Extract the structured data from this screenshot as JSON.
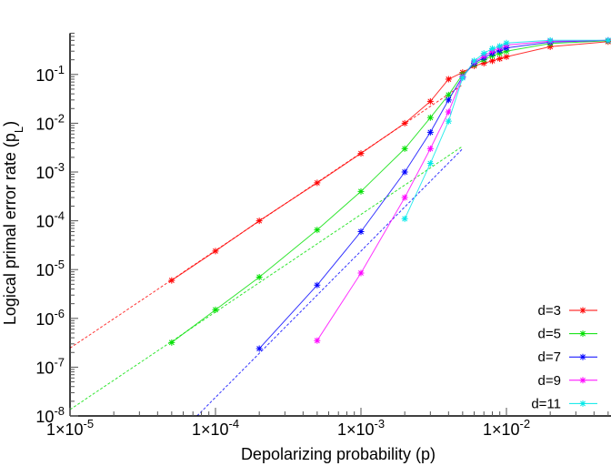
{
  "chart_data": {
    "type": "line",
    "xlabel": "Depolarizing probability (p)",
    "ylabel": "Logical primal error rate (p_L)",
    "xscale": "log",
    "yscale": "log",
    "xlim": [
      1e-05,
      0.05
    ],
    "ylim": [
      1e-08,
      0.7
    ],
    "grid": false,
    "legend_placement": "bottom-right",
    "x_tick_labels": [
      {
        "value": 1e-05,
        "mant": "1",
        "exp": "-5"
      },
      {
        "value": 0.0001,
        "mant": "1",
        "exp": "-4"
      },
      {
        "value": 0.001,
        "mant": "1",
        "exp": "-3"
      },
      {
        "value": 0.01,
        "mant": "1",
        "exp": "-2"
      }
    ],
    "y_tick_labels": [
      {
        "value": 1e-08,
        "exp": "-8"
      },
      {
        "value": 1e-07,
        "exp": "-7"
      },
      {
        "value": 1e-06,
        "exp": "-6"
      },
      {
        "value": 1e-05,
        "exp": "-5"
      },
      {
        "value": 0.0001,
        "exp": "-4"
      },
      {
        "value": 0.001,
        "exp": "-3"
      },
      {
        "value": 0.01,
        "exp": "-2"
      },
      {
        "value": 0.1,
        "exp": "-1"
      }
    ],
    "series": [
      {
        "name": "d=3",
        "color": "#ff0000",
        "x": [
          5e-05,
          0.0001,
          0.0002,
          0.0005,
          0.001,
          0.002,
          0.003,
          0.004,
          0.005,
          0.006,
          0.007,
          0.008,
          0.009,
          0.01,
          0.02,
          0.05
        ],
        "y": [
          6e-06,
          2.4e-05,
          0.0001,
          0.0006,
          0.0024,
          0.01,
          0.028,
          0.08,
          0.11,
          0.15,
          0.17,
          0.19,
          0.21,
          0.23,
          0.37,
          0.47
        ]
      },
      {
        "name": "d=5",
        "color": "#00e000",
        "x": [
          5e-05,
          0.0001,
          0.0002,
          0.0005,
          0.001,
          0.002,
          0.003,
          0.004,
          0.005,
          0.006,
          0.007,
          0.008,
          0.009,
          0.01,
          0.02,
          0.05
        ],
        "y": [
          3.2e-07,
          1.5e-06,
          7e-06,
          6.5e-05,
          0.0004,
          0.003,
          0.013,
          0.038,
          0.1,
          0.16,
          0.2,
          0.24,
          0.27,
          0.3,
          0.43,
          0.49
        ]
      },
      {
        "name": "d=7",
        "color": "#0000ff",
        "x": [
          0.0002,
          0.0005,
          0.001,
          0.002,
          0.003,
          0.004,
          0.005,
          0.006,
          0.007,
          0.008,
          0.009,
          0.01,
          0.02,
          0.05
        ],
        "y": [
          2.4e-07,
          4.8e-06,
          6e-05,
          0.001,
          0.0065,
          0.03,
          0.09,
          0.17,
          0.22,
          0.27,
          0.31,
          0.35,
          0.46,
          0.5
        ]
      },
      {
        "name": "d=9",
        "color": "#ff00ff",
        "x": [
          0.0005,
          0.001,
          0.002,
          0.003,
          0.004,
          0.005,
          0.006,
          0.007,
          0.008,
          0.009,
          0.01,
          0.02,
          0.05
        ],
        "y": [
          3.5e-07,
          8.5e-06,
          0.0003,
          0.003,
          0.017,
          0.09,
          0.18,
          0.24,
          0.3,
          0.35,
          0.4,
          0.48,
          0.5
        ]
      },
      {
        "name": "d=11",
        "color": "#00e8e8",
        "x": [
          0.002,
          0.003,
          0.004,
          0.005,
          0.006,
          0.007,
          0.008,
          0.009,
          0.01,
          0.02,
          0.05
        ],
        "y": [
          0.00011,
          0.0015,
          0.011,
          0.085,
          0.19,
          0.27,
          0.34,
          0.38,
          0.44,
          0.5,
          0.5
        ]
      }
    ],
    "fit_lines": [
      {
        "color": "#ff0000",
        "coef": 2460,
        "power": 2,
        "x_range": [
          1e-05,
          0.005
        ]
      },
      {
        "color": "#00e000",
        "coef": 135,
        "power": 2,
        "x_range": [
          1e-05,
          0.005
        ]
      },
      {
        "color": "#0000ff",
        "coef": 24000,
        "power": 3,
        "x_range": [
          1e-05,
          0.005
        ]
      }
    ]
  }
}
